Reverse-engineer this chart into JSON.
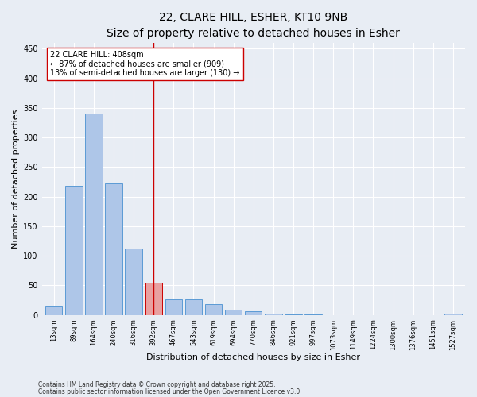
{
  "title_line1": "22, CLARE HILL, ESHER, KT10 9NB",
  "title_line2": "Size of property relative to detached houses in Esher",
  "xlabel": "Distribution of detached houses by size in Esher",
  "ylabel": "Number of detached properties",
  "categories": [
    "13sqm",
    "89sqm",
    "164sqm",
    "240sqm",
    "316sqm",
    "392sqm",
    "467sqm",
    "543sqm",
    "619sqm",
    "694sqm",
    "770sqm",
    "846sqm",
    "921sqm",
    "997sqm",
    "1073sqm",
    "1149sqm",
    "1224sqm",
    "1300sqm",
    "1376sqm",
    "1451sqm",
    "1527sqm"
  ],
  "values": [
    15,
    218,
    340,
    222,
    112,
    55,
    26,
    26,
    18,
    9,
    6,
    2,
    1,
    1,
    0,
    0,
    0,
    0,
    0,
    0,
    2
  ],
  "bar_color": "#aec6e8",
  "bar_edge_color": "#5b9bd5",
  "highlight_bar_index": 5,
  "highlight_bar_color": "#e8a0a0",
  "highlight_bar_edge_color": "#cc0000",
  "vline_x_index": 5,
  "vline_color": "#cc0000",
  "annotation_text": "22 CLARE HILL: 408sqm\n← 87% of detached houses are smaller (909)\n13% of semi-detached houses are larger (130) →",
  "annotation_box_color": "#ffffff",
  "annotation_box_edge": "#cc0000",
  "ylim": [
    0,
    460
  ],
  "yticks": [
    0,
    50,
    100,
    150,
    200,
    250,
    300,
    350,
    400,
    450
  ],
  "bg_color": "#e8edf4",
  "plot_bg_color": "#e8edf4",
  "footer_line1": "Contains HM Land Registry data © Crown copyright and database right 2025.",
  "footer_line2": "Contains public sector information licensed under the Open Government Licence v3.0.",
  "title_fontsize": 10,
  "subtitle_fontsize": 9,
  "tick_fontsize": 6,
  "label_fontsize": 8,
  "annotation_fontsize": 7,
  "footer_fontsize": 5.5
}
